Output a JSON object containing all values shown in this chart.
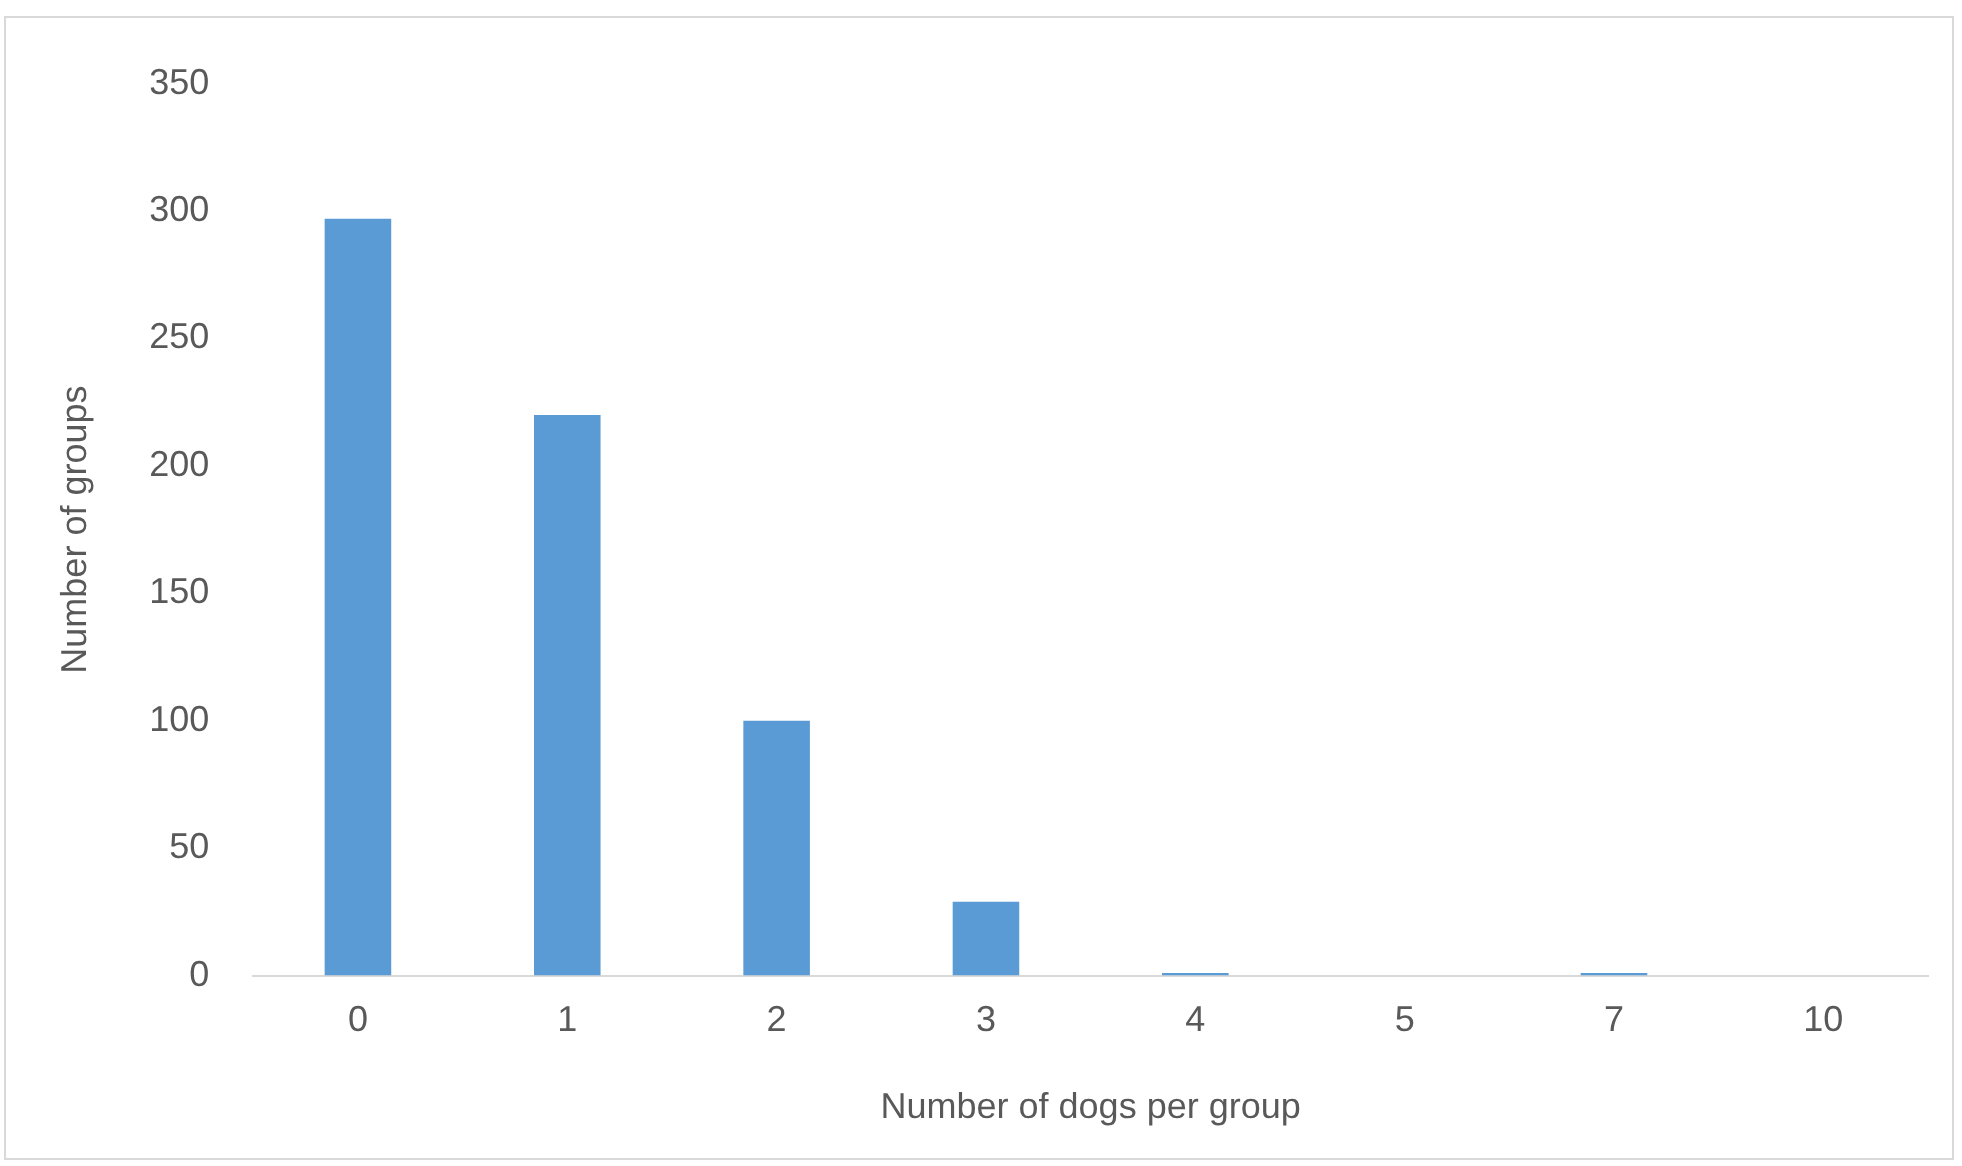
{
  "chart_data": {
    "type": "bar",
    "xlabel": "Number of dogs per group",
    "ylabel": "Number of groups",
    "categories": [
      "0",
      "1",
      "2",
      "3",
      "4",
      "5",
      "7",
      "10"
    ],
    "values": [
      297,
      220,
      100,
      29,
      1,
      0,
      1,
      0
    ],
    "color": "#5b9bd5",
    "ylim": [
      0,
      350
    ],
    "yticks": [
      0,
      50,
      100,
      150,
      200,
      250,
      300,
      350
    ],
    "grid": false,
    "legend": false
  }
}
